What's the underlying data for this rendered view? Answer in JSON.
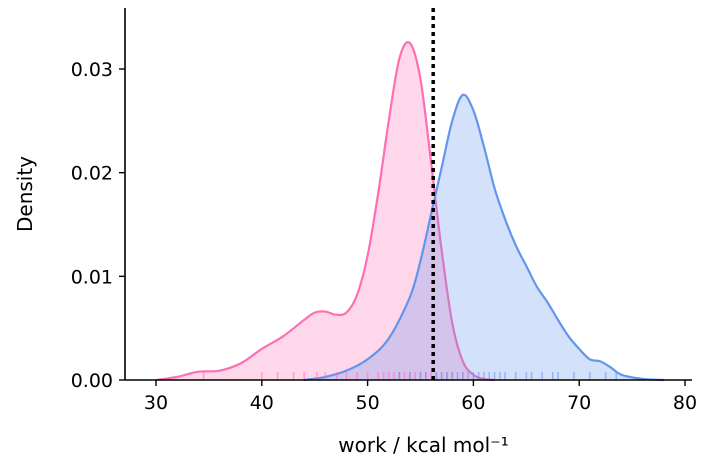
{
  "chart_data": {
    "type": "area",
    "xlabel": "work / kcal mol⁻¹",
    "ylabel": "Density",
    "xlim": [
      27,
      81
    ],
    "ylim": [
      0,
      0.036
    ],
    "xticks": [
      30,
      40,
      50,
      60,
      70,
      80
    ],
    "yticks": [
      0.0,
      0.01,
      0.02,
      0.03
    ],
    "xtick_labels": [
      "30",
      "40",
      "50",
      "60",
      "70",
      "80"
    ],
    "ytick_labels": [
      "0.00",
      "0.01",
      "0.02",
      "0.03"
    ],
    "grid": false,
    "series": [
      {
        "color": "#ff6eb4",
        "fill": "#ffd0e4",
        "x": [
          30,
          32,
          34,
          36,
          38,
          40,
          42,
          44,
          45,
          46,
          47,
          48,
          49,
          50,
          51,
          52,
          53,
          54,
          55,
          56,
          57,
          58,
          59,
          60,
          61,
          62
        ],
        "y": [
          0.0,
          0.0003,
          0.0008,
          0.0009,
          0.0016,
          0.003,
          0.0042,
          0.0058,
          0.0065,
          0.0066,
          0.0063,
          0.0065,
          0.0082,
          0.012,
          0.018,
          0.025,
          0.031,
          0.0325,
          0.029,
          0.021,
          0.0125,
          0.0055,
          0.0018,
          0.0005,
          0.0001,
          0.0
        ],
        "rug": [
          34.5,
          40.0,
          41.5,
          43.0,
          44.0,
          45.2,
          46.0,
          47.1,
          48.0,
          49.0,
          50.0,
          51.0,
          51.5,
          52.0,
          52.5,
          53.0,
          53.5,
          54.0,
          54.5,
          55.0,
          55.5,
          56.0,
          56.5,
          57.0,
          57.5,
          58.0,
          59.0
        ]
      },
      {
        "color": "#6495ed",
        "fill": "#d2dff7",
        "x": [
          44,
          46,
          48,
          50,
          52,
          54,
          55,
          56,
          57,
          58,
          59,
          60,
          61,
          62,
          63,
          64,
          65,
          66,
          67,
          68,
          69,
          70,
          71,
          72,
          73,
          74,
          76,
          78
        ],
        "y": [
          0.0,
          0.0003,
          0.0009,
          0.002,
          0.004,
          0.008,
          0.0115,
          0.016,
          0.0205,
          0.025,
          0.0275,
          0.026,
          0.0225,
          0.0185,
          0.0155,
          0.013,
          0.011,
          0.009,
          0.0075,
          0.0058,
          0.0042,
          0.003,
          0.002,
          0.0018,
          0.0012,
          0.0005,
          0.0001,
          0.0
        ],
        "rug": [
          53.0,
          54.0,
          55.0,
          55.5,
          56.5,
          57.0,
          57.5,
          58.0,
          58.5,
          59.0,
          59.5,
          60.0,
          60.5,
          61.0,
          61.5,
          62.0,
          62.5,
          63.0,
          64.0,
          65.0,
          65.5,
          66.5,
          67.5,
          68.0,
          69.5,
          71.0,
          72.5,
          73.5
        ]
      }
    ],
    "vline": {
      "x": 56.2,
      "color": "#000000",
      "style": "dotted"
    }
  }
}
